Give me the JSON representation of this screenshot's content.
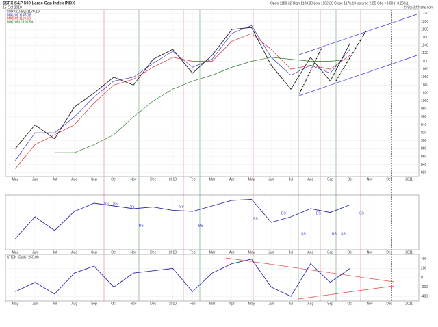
{
  "chart_data": [
    {
      "type": "line",
      "title": "$SPX S&P 500 Large Cap Index INDX",
      "subtitle": "15-Oct-2010",
      "info": "Open 1180.32 High 1183.80 Low 1162.30 Close 1176.19 Volume 2.2B Chg +3.00 (+0.26%)",
      "copyright": "© StockCharts.com",
      "categories": [
        "May",
        "Jun",
        "Jul",
        "Aug",
        "Sep",
        "Oct",
        "Nov",
        "Dec",
        "2010",
        "Feb",
        "Mar",
        "Apr",
        "May",
        "Jun",
        "Jul",
        "Aug",
        "Sep",
        "Oct",
        "Nov",
        "Dec",
        "2011"
      ],
      "series": [
        {
          "name": "$SPX (Daily) 1176.19",
          "color": "#222222",
          "values": [
            880,
            940,
            905,
            985,
            1020,
            1060,
            1040,
            1105,
            1130,
            1070,
            1115,
            1180,
            1185,
            1090,
            1030,
            1110,
            1050,
            1145,
            null,
            null,
            null
          ]
        },
        {
          "name": "MA(20) 1145.76",
          "color": "#3a3ac8",
          "values": [
            850,
            920,
            920,
            960,
            1010,
            1050,
            1060,
            1095,
            1125,
            1085,
            1105,
            1170,
            1190,
            1110,
            1065,
            1090,
            1070,
            1130,
            null,
            null,
            null
          ]
        },
        {
          "name": "MA(50) 1119.60",
          "color": "#d03030",
          "values": [
            830,
            890,
            915,
            940,
            995,
            1040,
            1055,
            1085,
            1110,
            1100,
            1100,
            1150,
            1170,
            1130,
            1080,
            1090,
            1080,
            1115,
            null,
            null,
            null
          ]
        },
        {
          "name": "MA(200) 1106.54",
          "color": "#2e7d2e",
          "values": [
            null,
            null,
            870,
            870,
            890,
            915,
            960,
            1000,
            1030,
            1050,
            1065,
            1085,
            1100,
            1110,
            1105,
            1100,
            1100,
            1105,
            null,
            null,
            null
          ]
        }
      ],
      "ylim": [
        810,
        1230
      ],
      "yticks": [
        820,
        840,
        860,
        880,
        900,
        920,
        940,
        960,
        980,
        1000,
        1020,
        1040,
        1060,
        1080,
        1100,
        1120,
        1140,
        1160,
        1180,
        1200,
        1220
      ],
      "grid": true
    },
    {
      "type": "line",
      "categories": [
        "May",
        "Jun",
        "Jul",
        "Aug",
        "Sep",
        "Oct",
        "Nov",
        "Dec",
        "2010",
        "Feb",
        "Mar",
        "Apr",
        "May",
        "Jun",
        "Jul",
        "Aug",
        "Sep",
        "Oct",
        "Nov",
        "Dec",
        "2011"
      ],
      "annotations": [
        "SS",
        "SS",
        "SS",
        "BS",
        "SS",
        "BS",
        "SS",
        "BS",
        "SS",
        "BS",
        "BS",
        "SS",
        "SS"
      ],
      "series": [
        {
          "color": "#2a2aa8",
          "values": [
            20,
            60,
            35,
            70,
            85,
            80,
            75,
            78,
            72,
            70,
            80,
            90,
            92,
            50,
            60,
            75,
            68,
            82,
            null,
            null,
            null
          ]
        }
      ],
      "ylim": [
        0,
        100
      ],
      "grid": true
    },
    {
      "type": "line",
      "title": "$TICK (Daily) 255.00",
      "categories": [
        "May",
        "Jun",
        "Jul",
        "Aug",
        "Sep",
        "Oct",
        "Nov",
        "Dec",
        "2010",
        "Feb",
        "Mar",
        "Apr",
        "May",
        "Jun",
        "Jul",
        "Aug",
        "Sep",
        "Oct",
        "Nov",
        "Dec",
        "2011"
      ],
      "series": [
        {
          "color": "#2a2aa8",
          "values": [
            -300,
            -100,
            -350,
            100,
            250,
            -200,
            100,
            150,
            200,
            -300,
            100,
            300,
            400,
            -200,
            -400,
            300,
            -100,
            200,
            null,
            null,
            null
          ]
        }
      ],
      "ylim": [
        -500,
        500
      ],
      "yticks": [
        -400,
        -200,
        0,
        200,
        400
      ],
      "grid": true
    }
  ]
}
